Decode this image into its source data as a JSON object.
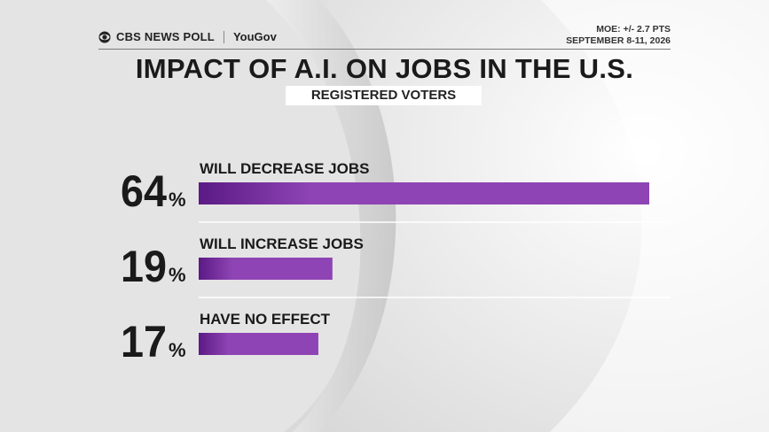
{
  "header": {
    "brand": "CBS NEWS POLL",
    "partner": "YouGov",
    "moe": "MOE: +/- 2.7 PTS",
    "date": "SEPTEMBER 8-11, 2026"
  },
  "chart_data": {
    "type": "bar",
    "title": "IMPACT OF A.I. ON JOBS IN THE U.S.",
    "subtitle": "REGISTERED VOTERS",
    "categories": [
      "WILL DECREASE JOBS",
      "WILL INCREASE JOBS",
      "HAVE NO EFFECT"
    ],
    "values": [
      64,
      19,
      17
    ],
    "unit": "%",
    "bar_color": "#8e44b4",
    "bar_color_dark": "#5b1a85"
  }
}
